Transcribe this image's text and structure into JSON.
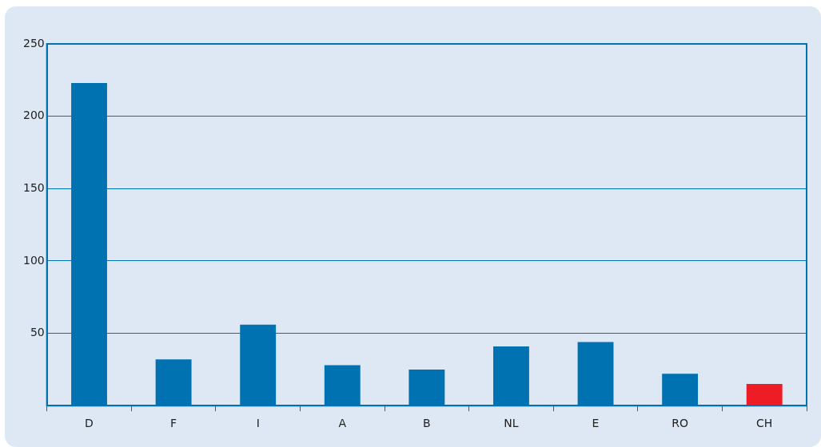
{
  "chart_data": {
    "type": "bar",
    "categories": [
      "D",
      "F",
      "I",
      "A",
      "B",
      "NL",
      "E",
      "RO",
      "CH"
    ],
    "values": [
      223,
      32,
      56,
      28,
      25,
      41,
      44,
      22,
      15
    ],
    "colors": [
      "#0071b1",
      "#0071b1",
      "#0071b1",
      "#0071b1",
      "#0071b1",
      "#0071b1",
      "#0071b1",
      "#0071b1",
      "#ee1c25"
    ],
    "ylim": [
      0,
      250
    ],
    "yticks": [
      {
        "value": 0,
        "label": null
      },
      50,
      100,
      150,
      200,
      250
    ],
    "grid": "y",
    "legend": false
  }
}
